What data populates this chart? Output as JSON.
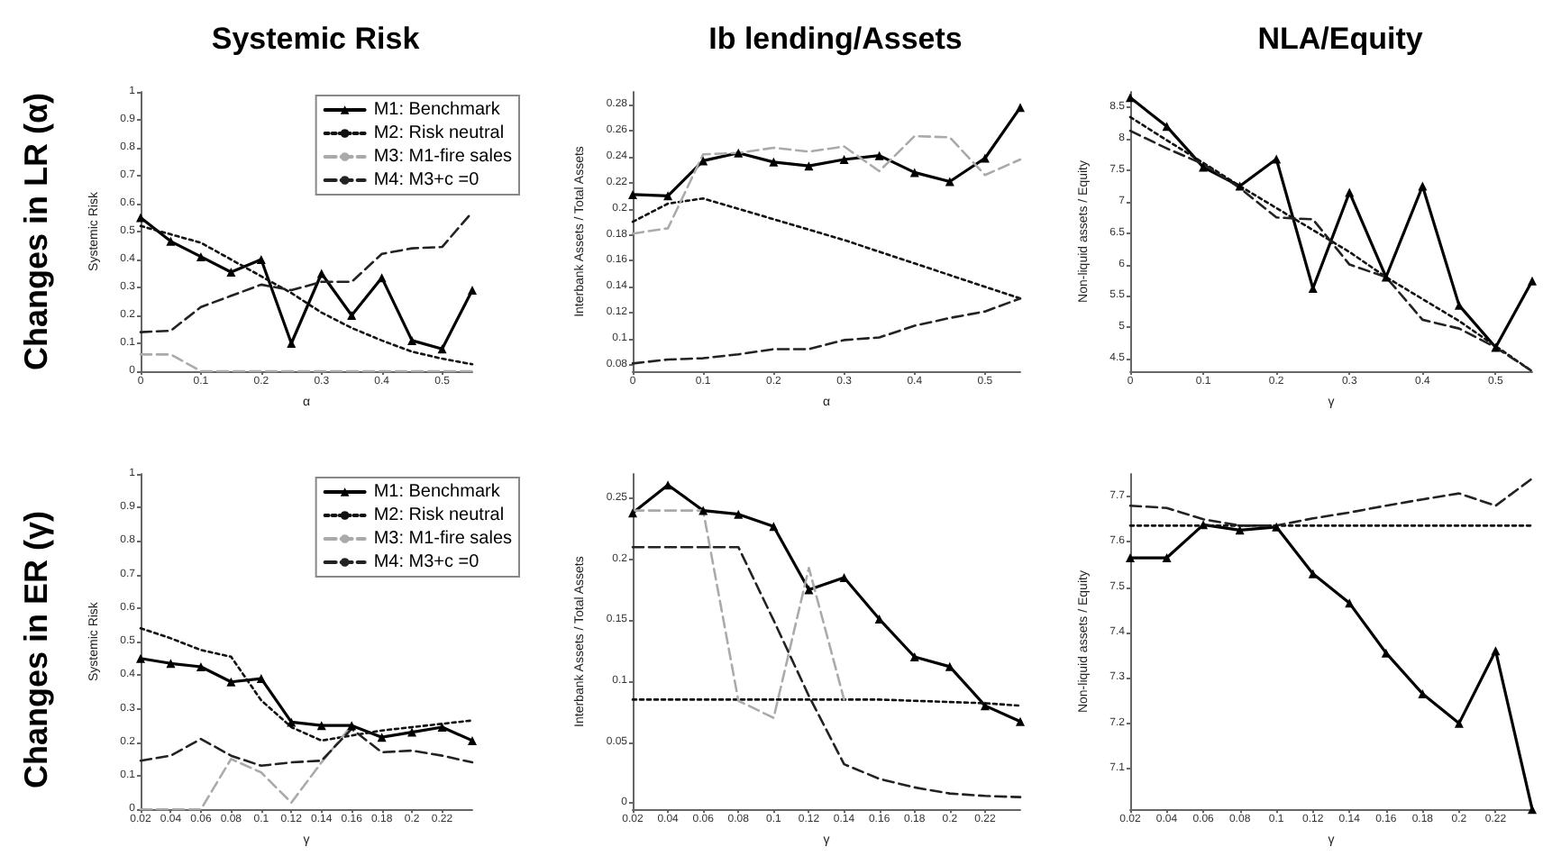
{
  "chart_data": [
    {
      "type": "line",
      "title": "Systemic Risk",
      "ylabel": "Systemic Risk",
      "xlabel": "α",
      "annotations": [
        "Changes in LR (α)"
      ],
      "legend": "top right",
      "x": [
        0,
        0.05,
        0.1,
        0.15,
        0.2,
        0.25,
        0.3,
        0.35,
        0.4,
        0.45,
        0.5,
        0.55
      ],
      "xlim": [
        0,
        0.55
      ],
      "xticks": [
        0,
        0.1,
        0.2,
        0.3,
        0.4,
        0.5
      ],
      "ylim": [
        0,
        1
      ],
      "yticks": [
        0,
        0.1,
        0.2,
        0.3,
        0.4,
        0.5,
        0.6,
        0.7,
        0.8,
        0.9,
        1
      ],
      "series": [
        {
          "name": "M1: Benchmark",
          "color": "#000000",
          "marker": "triangle",
          "line_style": "solid",
          "values": [
            0.55,
            0.465,
            0.41,
            0.355,
            0.4,
            0.1,
            0.35,
            0.2,
            0.335,
            0.11,
            0.08,
            0.29
          ]
        },
        {
          "name": "M2: Risk neutral",
          "color": "#111111",
          "marker": "none",
          "line_style": "dotted",
          "values": [
            0.52,
            0.49,
            0.46,
            0.4,
            0.34,
            0.28,
            0.21,
            0.155,
            0.11,
            0.07,
            0.045,
            0.025
          ]
        },
        {
          "name": "M3: M1-fire sales",
          "color": "#aaaaaa",
          "marker": "none",
          "line_style": "dashed",
          "values": [
            0.06,
            0.06,
            0,
            0,
            0,
            0,
            0,
            0,
            0,
            0,
            0,
            0
          ]
        },
        {
          "name": "M4: M3+c =0",
          "color": "#222222",
          "marker": "none",
          "line_style": "dashed",
          "values": [
            0.14,
            0.145,
            0.23,
            0.27,
            0.31,
            0.29,
            0.32,
            0.32,
            0.42,
            0.44,
            0.445,
            0.57
          ]
        }
      ]
    },
    {
      "type": "line",
      "title": "Ib lending/Assets",
      "ylabel": "Interbank Assets / Total Assets",
      "xlabel": "α",
      "x": [
        0,
        0.05,
        0.1,
        0.15,
        0.2,
        0.25,
        0.3,
        0.35,
        0.4,
        0.45,
        0.5,
        0.55
      ],
      "xlim": [
        0,
        0.55
      ],
      "xticks": [
        0,
        0.1,
        0.2,
        0.3,
        0.4,
        0.5
      ],
      "ylim": [
        0.075,
        0.29
      ],
      "yticks": [
        0.08,
        0.1,
        0.12,
        0.14,
        0.16,
        0.18,
        0.2,
        0.22,
        0.24,
        0.26,
        0.28
      ],
      "series": [
        {
          "color": "#000000",
          "marker": "triangle",
          "line_style": "solid",
          "values": [
            0.211,
            0.21,
            0.237,
            0.243,
            0.236,
            0.233,
            0.238,
            0.241,
            0.228,
            0.221,
            0.239,
            0.278
          ]
        },
        {
          "color": "#111111",
          "marker": "none",
          "line_style": "dotted",
          "values": [
            0.19,
            0.204,
            0.208,
            0.2,
            0.192,
            0.184,
            0.176,
            0.167,
            0.158,
            0.149,
            0.14,
            0.131
          ]
        },
        {
          "color": "#aaaaaa",
          "marker": "none",
          "line_style": "dashed",
          "values": [
            0.181,
            0.185,
            0.242,
            0.243,
            0.247,
            0.244,
            0.248,
            0.229,
            0.256,
            0.255,
            0.226,
            0.238
          ]
        },
        {
          "color": "#222222",
          "marker": "none",
          "line_style": "dashed",
          "values": [
            0.081,
            0.084,
            0.085,
            0.088,
            0.092,
            0.092,
            0.099,
            0.101,
            0.11,
            0.116,
            0.121,
            0.131
          ]
        }
      ]
    },
    {
      "type": "line",
      "title": "NLA/Equity",
      "ylabel": "Non-liquid assets / Equity",
      "xlabel": "γ",
      "x": [
        0,
        0.05,
        0.1,
        0.15,
        0.2,
        0.25,
        0.3,
        0.35,
        0.4,
        0.45,
        0.5,
        0.55
      ],
      "xlim": [
        0,
        0.55
      ],
      "xticks": [
        0,
        0.1,
        0.2,
        0.3,
        0.4,
        0.5
      ],
      "ylim": [
        4.3,
        8.75
      ],
      "yticks": [
        4.5,
        5,
        5.5,
        6,
        6.5,
        7,
        7.5,
        8,
        8.5
      ],
      "series": [
        {
          "color": "#000000",
          "marker": "triangle",
          "line_style": "solid",
          "values": [
            8.66,
            8.2,
            7.55,
            7.25,
            7.68,
            5.62,
            7.15,
            5.8,
            7.25,
            5.35,
            4.68,
            5.74
          ]
        },
        {
          "color": "#111111",
          "marker": "none",
          "line_style": "dotted",
          "values": [
            8.35,
            7.98,
            7.62,
            7.25,
            6.9,
            6.55,
            6.2,
            5.8,
            5.45,
            5.1,
            4.7,
            4.3
          ]
        },
        {
          "color": "#222222",
          "marker": "none",
          "line_style": "dashed",
          "values": [
            8.13,
            7.85,
            7.6,
            7.22,
            6.75,
            6.72,
            6.0,
            5.8,
            5.12,
            4.98,
            4.68,
            4.3
          ]
        }
      ]
    },
    {
      "type": "line",
      "ylabel": "Systemic Risk",
      "xlabel": "γ",
      "annotations": [
        "Changes in ER (γ)"
      ],
      "legend": "top right",
      "x": [
        0.02,
        0.04,
        0.06,
        0.08,
        0.1,
        0.12,
        0.14,
        0.16,
        0.18,
        0.2,
        0.22,
        0.24
      ],
      "xlim": [
        0.02,
        0.24
      ],
      "xticks": [
        0.02,
        0.04,
        0.06,
        0.08,
        0.1,
        0.12,
        0.14,
        0.16,
        0.18,
        0.2,
        0.22
      ],
      "ylim": [
        0,
        1
      ],
      "yticks": [
        0,
        0.1,
        0.2,
        0.3,
        0.4,
        0.5,
        0.6,
        0.7,
        0.8,
        0.9,
        1
      ],
      "series": [
        {
          "name": "M1: Benchmark",
          "color": "#000000",
          "marker": "triangle",
          "line_style": "solid",
          "values": [
            0.45,
            0.435,
            0.425,
            0.38,
            0.39,
            0.26,
            0.25,
            0.25,
            0.215,
            0.23,
            0.245,
            0.205
          ]
        },
        {
          "name": "M2: Risk neutral",
          "color": "#111111",
          "marker": "none",
          "line_style": "dotted",
          "values": [
            0.54,
            0.51,
            0.475,
            0.455,
            0.325,
            0.245,
            0.205,
            0.22,
            0.235,
            0.245,
            0.255,
            0.265
          ]
        },
        {
          "name": "M3: M1-fire sales",
          "color": "#aaaaaa",
          "marker": "none",
          "line_style": "dashed",
          "values": [
            0,
            0,
            0,
            0.15,
            0.11,
            0.02,
            0.14,
            0.25,
            null,
            null,
            null,
            null
          ]
        },
        {
          "name": "M4: M3+c =0",
          "color": "#222222",
          "marker": "none",
          "line_style": "dashed",
          "values": [
            0.145,
            0.16,
            0.21,
            0.16,
            0.13,
            0.14,
            0.145,
            0.24,
            0.17,
            0.175,
            0.16,
            0.14
          ]
        }
      ]
    },
    {
      "type": "line",
      "ylabel": "Interbank Assets / Total Assets",
      "xlabel": "γ",
      "x": [
        0.02,
        0.04,
        0.06,
        0.08,
        0.1,
        0.12,
        0.14,
        0.16,
        0.18,
        0.2,
        0.22,
        0.24
      ],
      "xlim": [
        0.02,
        0.24
      ],
      "xticks": [
        0.02,
        0.04,
        0.06,
        0.08,
        0.1,
        0.12,
        0.14,
        0.16,
        0.18,
        0.2,
        0.22
      ],
      "ylim": [
        -0.005,
        0.27
      ],
      "yticks": [
        0,
        0.05,
        0.1,
        0.15,
        0.2,
        0.25
      ],
      "series": [
        {
          "color": "#000000",
          "marker": "triangle",
          "line_style": "solid",
          "values": [
            0.238,
            0.261,
            0.24,
            0.237,
            0.227,
            0.175,
            0.185,
            0.151,
            0.12,
            0.112,
            0.08,
            0.067
          ]
        },
        {
          "color": "#111111",
          "marker": "none",
          "line_style": "dotted",
          "values": [
            0.085,
            0.085,
            0.085,
            0.085,
            0.085,
            0.085,
            0.085,
            0.085,
            0.084,
            0.083,
            0.082,
            0.08
          ]
        },
        {
          "color": "#aaaaaa",
          "marker": "none",
          "line_style": "dashed",
          "values": [
            0.24,
            0.24,
            0.24,
            0.084,
            0.07,
            0.193,
            0.085,
            null,
            null,
            null,
            null,
            null
          ]
        },
        {
          "color": "#222222",
          "marker": "none",
          "line_style": "dashed",
          "values": [
            0.21,
            0.21,
            0.21,
            0.21,
            0.15,
            0.088,
            0.032,
            0.02,
            0.013,
            0.008,
            0.006,
            0.005
          ]
        }
      ]
    },
    {
      "type": "line",
      "ylabel": "Non-liquid assets / Equity",
      "xlabel": "γ",
      "x": [
        0.02,
        0.04,
        0.06,
        0.08,
        0.1,
        0.12,
        0.14,
        0.16,
        0.18,
        0.2,
        0.22,
        0.24
      ],
      "xlim": [
        0.02,
        0.24
      ],
      "xticks": [
        0.02,
        0.04,
        0.06,
        0.08,
        0.1,
        0.12,
        0.14,
        0.16,
        0.18,
        0.2,
        0.22
      ],
      "ylim": [
        7.01,
        7.75
      ],
      "yticks": [
        7.1,
        7.2,
        7.3,
        7.4,
        7.5,
        7.6,
        7.7
      ],
      "series": [
        {
          "color": "#000000",
          "marker": "triangle",
          "line_style": "solid",
          "values": [
            7.565,
            7.565,
            7.638,
            7.626,
            7.633,
            7.53,
            7.465,
            7.355,
            7.265,
            7.2,
            7.36,
            7.01
          ]
        },
        {
          "color": "#111111",
          "marker": "none",
          "line_style": "dotted",
          "values": [
            7.636,
            7.636,
            7.636,
            7.636,
            7.636,
            7.636,
            7.636,
            7.636,
            7.636,
            7.636,
            7.636,
            7.636
          ]
        },
        {
          "color": "#222222",
          "marker": "none",
          "line_style": "dashed",
          "values": [
            7.68,
            7.675,
            7.65,
            7.636,
            7.636,
            7.652,
            7.665,
            7.68,
            7.694,
            7.707,
            7.68,
            7.74
          ]
        }
      ]
    }
  ]
}
